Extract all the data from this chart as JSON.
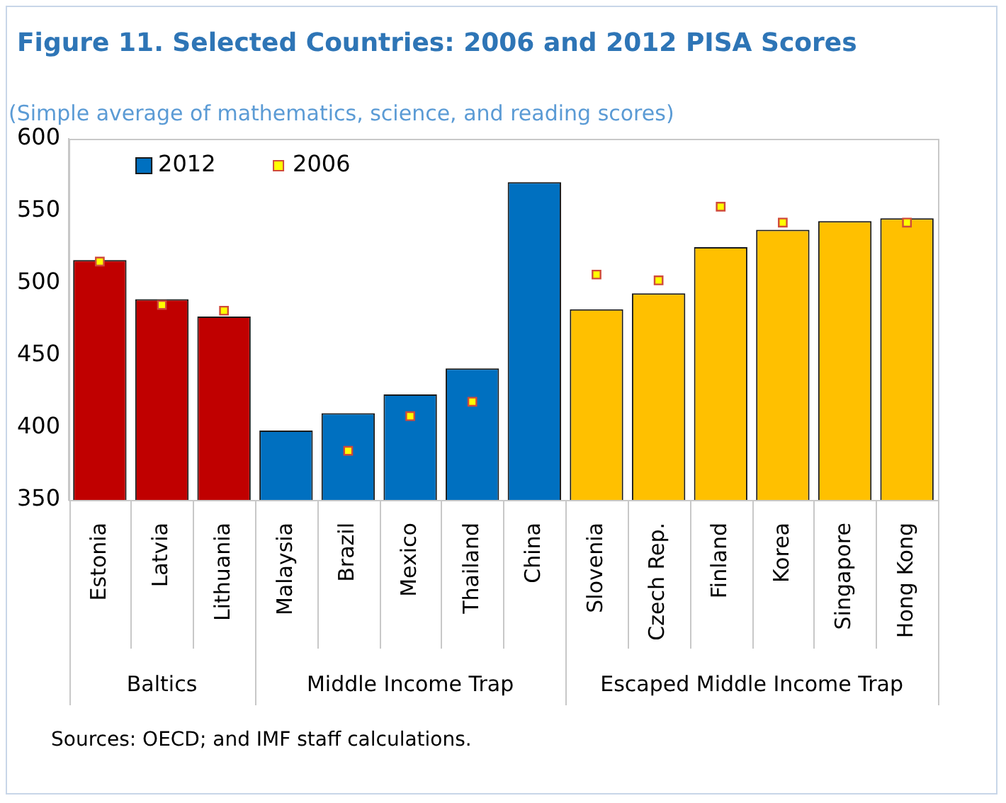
{
  "chart_data": {
    "type": "bar",
    "title": "Figure 11. Selected Countries: 2006 and 2012 PISA Scores",
    "subtitle": "(Simple average of mathematics, science, and reading scores)",
    "categories": [
      "Estonia",
      "Latvia",
      "Lithuania",
      "Malaysia",
      "Brazil",
      "Mexico",
      "Thailand",
      "China",
      "Slovenia",
      "Czech Rep.",
      "Finland",
      "Korea",
      "Singapore",
      "Hong Kong"
    ],
    "series": [
      {
        "name": "2012",
        "color": "#0070c0",
        "colors": [
          "#c00000",
          "#c00000",
          "#c00000",
          "#0070c0",
          "#0070c0",
          "#0070c0",
          "#0070c0",
          "#0070c0",
          "#ffc000",
          "#ffc000",
          "#ffc000",
          "#ffc000",
          "#ffc000",
          "#ffc000"
        ],
        "values": [
          516,
          489,
          477,
          398,
          410,
          423,
          441,
          570,
          482,
          493,
          525,
          537,
          543,
          545
        ]
      },
      {
        "name": "2006",
        "type": "scatter",
        "color": "#ffff00",
        "marker": "square",
        "values": [
          515,
          485,
          481,
          null,
          384,
          408,
          418,
          null,
          506,
          502,
          553,
          542,
          null,
          542
        ]
      }
    ],
    "ylim": [
      350,
      600
    ],
    "yticks": [
      350,
      400,
      450,
      500,
      550,
      600
    ],
    "grid": false,
    "legend": "top left",
    "annotations": [
      "Baltics",
      "Middle Income Trap",
      "Escaped Middle Income Trap",
      "Sources: OECD; and IMF staff calculations."
    ]
  }
}
